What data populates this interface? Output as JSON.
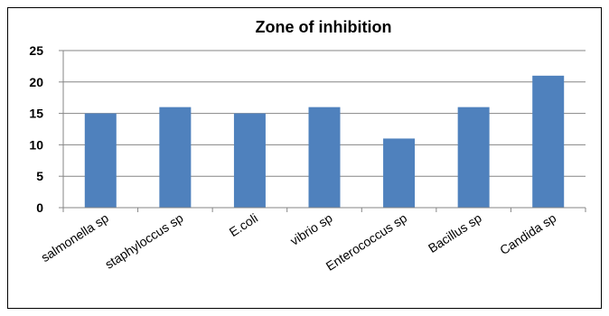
{
  "chart_data": {
    "type": "bar",
    "title": "Zone of inhibition",
    "categories": [
      "salmonella sp",
      "staphyloccus sp",
      "E.coli",
      "vibrio sp",
      "Enterococcus sp",
      "Bacillus  sp",
      "Candida sp"
    ],
    "values": [
      15,
      16,
      15,
      16,
      11,
      16,
      21
    ],
    "ylim": [
      0,
      25
    ],
    "yticks": [
      "0",
      "5",
      "10",
      "15",
      "20",
      "25"
    ],
    "grid": true,
    "legend": "none",
    "bar_color": "#4f81bd"
  }
}
